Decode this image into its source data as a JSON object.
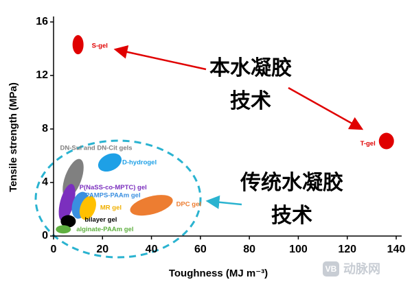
{
  "chart_data": {
    "type": "scatter",
    "xlabel": "Toughness (MJ m⁻³)",
    "ylabel": "Tensile strength (MPa)",
    "xlim": [
      0,
      140
    ],
    "xticks": [
      0,
      20,
      40,
      60,
      80,
      100,
      120,
      140
    ],
    "ylim": [
      0,
      16
    ],
    "yticks": [
      0,
      4,
      8,
      12,
      16
    ],
    "labels": [
      "S-gel",
      "T-gel",
      "DN-Sul and DN-Cit gels",
      "D-hydrogel",
      "P(NaSS-co-MPTC) gel",
      "PAMPS-PAAm gel",
      "MR gel",
      "bilayer gel",
      "alginate-PAAm gel",
      "DPC gel"
    ],
    "x": [
      10,
      136,
      8,
      23,
      5.5,
      11,
      14,
      6,
      4,
      40
    ],
    "values": [
      14.3,
      7.1,
      4.3,
      5.5,
      2.5,
      2.3,
      2.1,
      1.1,
      0.5,
      2.3
    ],
    "colors": [
      "#e00000",
      "#e00000",
      "#808080",
      "#1ea0e6",
      "#7b2fbe",
      "#3a8fe0",
      "#ffc000",
      "#000000",
      "#5fb040",
      "#ed7d31"
    ],
    "annotations": [
      "本水凝胶",
      "技术",
      "传统水凝胶",
      "技术"
    ],
    "watermark": {
      "logo": "VB",
      "text": "动脉网"
    }
  }
}
